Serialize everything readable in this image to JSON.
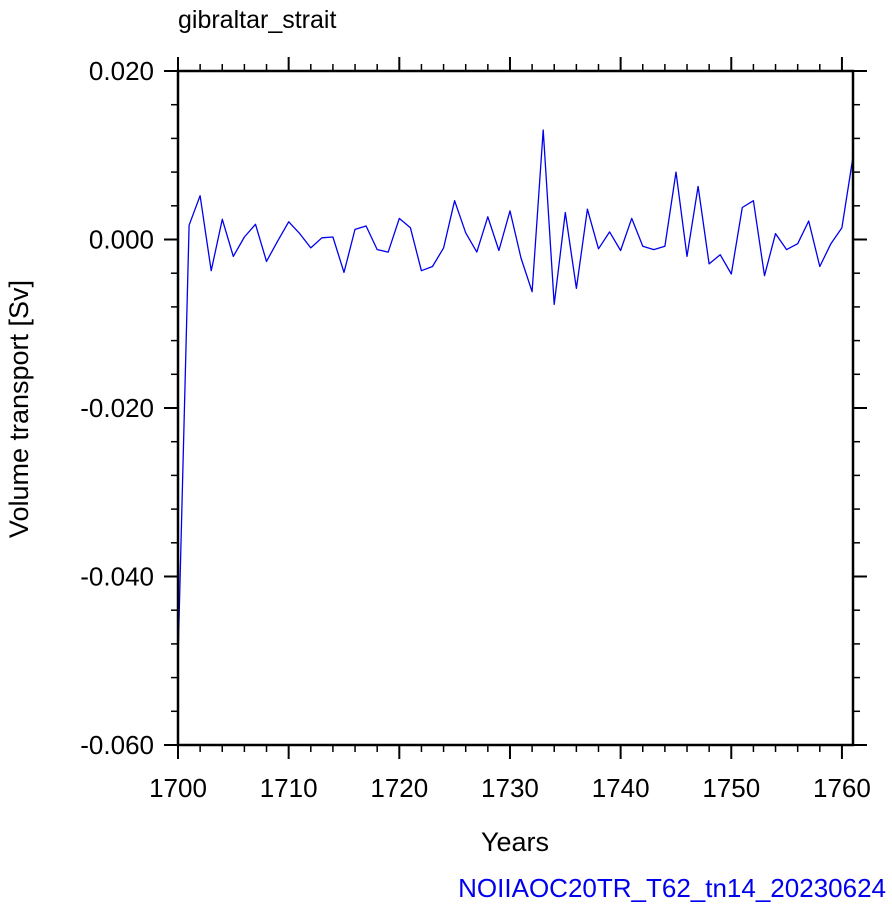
{
  "chart_data": {
    "type": "line",
    "title": "gibraltar_strait",
    "xlabel": "Years",
    "ylabel": "Volume transport [Sv]",
    "footer": "NOIIAOC20TR_T62_tn14_20230624",
    "xlim": [
      1700,
      1761
    ],
    "ylim": [
      -0.06,
      0.02
    ],
    "xticks": [
      1700,
      1710,
      1720,
      1730,
      1740,
      1750,
      1760
    ],
    "xtick_labels": [
      "1700",
      "1710",
      "1720",
      "1730",
      "1740",
      "1750",
      "1760"
    ],
    "yticks": [
      -0.06,
      -0.04,
      -0.02,
      0.0,
      0.02
    ],
    "ytick_labels": [
      "-0.060",
      "-0.040",
      "-0.020",
      "0.000",
      "0.020"
    ],
    "grid": false,
    "series": [
      {
        "color": "#0000ee",
        "x": [
          1700,
          1701,
          1702,
          1703,
          1704,
          1705,
          1706,
          1707,
          1708,
          1709,
          1710,
          1711,
          1712,
          1713,
          1714,
          1715,
          1716,
          1717,
          1718,
          1719,
          1720,
          1721,
          1722,
          1723,
          1724,
          1725,
          1726,
          1727,
          1728,
          1729,
          1730,
          1731,
          1732,
          1733,
          1734,
          1735,
          1736,
          1737,
          1738,
          1739,
          1740,
          1741,
          1742,
          1743,
          1744,
          1745,
          1746,
          1747,
          1748,
          1749,
          1750,
          1751,
          1752,
          1753,
          1754,
          1755,
          1756,
          1757,
          1758,
          1759,
          1760,
          1761
        ],
        "y": [
          -0.05,
          0.0017,
          0.0052,
          -0.0037,
          0.0024,
          -0.002,
          0.0003,
          0.0018,
          -0.0026,
          -0.0002,
          0.0021,
          0.0007,
          -0.001,
          0.0002,
          0.0003,
          -0.0039,
          0.0012,
          0.0016,
          -0.0012,
          -0.0015,
          0.0025,
          0.0014,
          -0.0037,
          -0.0032,
          -0.001,
          0.0046,
          0.0008,
          -0.0015,
          0.0027,
          -0.0013,
          0.0034,
          -0.0022,
          -0.0062,
          0.013,
          -0.0077,
          0.0032,
          -0.0058,
          0.0036,
          -0.0011,
          0.0009,
          -0.0013,
          0.0025,
          -0.0008,
          -0.0012,
          -0.0008,
          0.008,
          -0.002,
          0.0063,
          -0.0029,
          -0.0018,
          -0.0041,
          0.0038,
          0.0046,
          -0.0043,
          0.0007,
          -0.0012,
          -0.0005,
          0.0022,
          -0.0032,
          -0.0005,
          0.0014,
          0.0098
        ]
      }
    ]
  }
}
